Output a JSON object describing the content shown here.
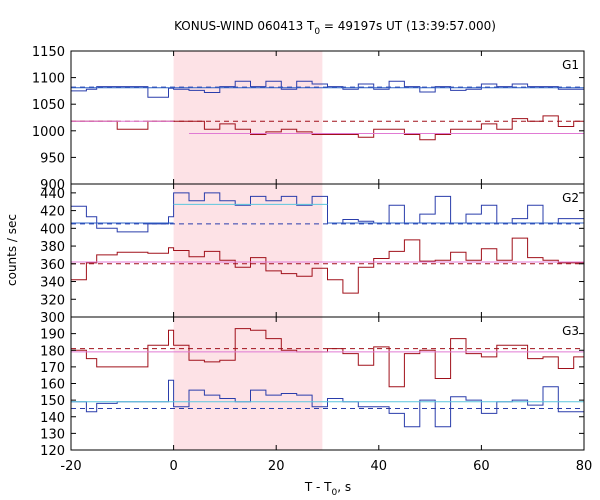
{
  "chart_data": {
    "type": "line",
    "title_main": "KONUS-WIND 060413 T",
    "title_sub": "0",
    "title_rest": " = 49197s UT (13:39:57.000)",
    "xlabel_main": "T - T",
    "xlabel_sub": "0",
    "xlabel_rest": ", s",
    "ylabel": "counts / sec",
    "xlim": [
      -20,
      80
    ],
    "x_ticks": [
      -20,
      0,
      20,
      40,
      60,
      80
    ],
    "x_tick_labels": [
      "-20",
      "0",
      "20",
      "40",
      "60",
      "80"
    ],
    "highlight_interval": [
      0,
      29
    ],
    "colors": {
      "blue": "#2a3dab",
      "red": "#a0101a",
      "fit_blue": "#2f63c8",
      "fit_light": "#5cc6dd",
      "fit_pink": "#e07ad4",
      "band": "#fde2e6"
    },
    "panels": [
      {
        "name": "G1",
        "label": "G1",
        "ylim": [
          900,
          1150
        ],
        "y_ticks": [
          900,
          950,
          1000,
          1050,
          1100,
          1150
        ],
        "y_tick_labels": [
          "900",
          "950",
          "1000",
          "1050",
          "1100",
          "1150"
        ],
        "series": [
          {
            "name": "blue",
            "color": "blue",
            "edges": [
              -20,
              -17,
              -15,
              -11,
              -5,
              -1,
              0,
              3,
              6,
              9,
              12,
              15,
              18,
              21,
              24,
              27,
              30,
              33,
              36,
              39,
              42,
              45,
              48,
              51,
              54,
              57,
              60,
              63,
              66,
              69,
              72,
              75,
              78,
              80
            ],
            "values": [
              1075,
              1078,
              1083,
              1083,
              1063,
              1080,
              1078,
              1076,
              1072,
              1083,
              1093,
              1083,
              1093,
              1078,
              1093,
              1088,
              1083,
              1078,
              1088,
              1078,
              1093,
              1083,
              1073,
              1083,
              1076,
              1078,
              1088,
              1083,
              1088,
              1083,
              1083,
              1078,
              1078
            ]
          },
          {
            "name": "red",
            "color": "red",
            "edges": [
              -20,
              -17,
              -15,
              -11,
              -5,
              -1,
              0,
              3,
              6,
              9,
              12,
              15,
              18,
              21,
              24,
              27,
              30,
              33,
              36,
              39,
              42,
              45,
              48,
              51,
              54,
              57,
              60,
              63,
              66,
              69,
              72,
              75,
              78,
              80
            ],
            "values": [
              1018,
              1018,
              1018,
              1003,
              1018,
              1018,
              1018,
              1018,
              1003,
              1013,
              1003,
              993,
              998,
              1003,
              998,
              993,
              993,
              993,
              988,
              1003,
              1003,
              993,
              983,
              993,
              1003,
              1003,
              1013,
              1003,
              1023,
              1018,
              1028,
              1008,
              1018
            ]
          }
        ],
        "fits": [
          {
            "name": "blue-dashed",
            "color": "blue",
            "dashed": true,
            "x": [
              -20,
              80
            ],
            "y": [
              1082,
              1082
            ]
          },
          {
            "name": "blue-fit",
            "color": "fit_blue",
            "dashed": false,
            "x": [
              -20,
              80
            ],
            "y": [
              1081,
              1081
            ]
          },
          {
            "name": "red-dashed",
            "color": "red",
            "dashed": true,
            "x": [
              -20,
              80
            ],
            "y": [
              1018,
              1018
            ]
          },
          {
            "name": "pink-fit-pre",
            "color": "fit_pink",
            "dashed": false,
            "x": [
              -20,
              0
            ],
            "y": [
              1018,
              1018
            ]
          },
          {
            "name": "pink-fit-post",
            "color": "fit_pink",
            "dashed": false,
            "x": [
              3,
              80
            ],
            "y": [
              995,
              995
            ]
          }
        ]
      },
      {
        "name": "G2",
        "label": "G2",
        "ylim": [
          300,
          450
        ],
        "y_ticks": [
          300,
          320,
          340,
          360,
          380,
          400,
          420,
          440
        ],
        "y_tick_labels": [
          "300",
          "320",
          "340",
          "360",
          "380",
          "400",
          "420",
          "440"
        ],
        "series": [
          {
            "name": "blue",
            "color": "blue",
            "edges": [
              -20,
              -17,
              -15,
              -11,
              -5,
              -1,
              0,
              3,
              6,
              9,
              12,
              15,
              18,
              21,
              24,
              27,
              30,
              33,
              36,
              39,
              42,
              45,
              48,
              51,
              54,
              57,
              60,
              63,
              66,
              69,
              72,
              75,
              78,
              80
            ],
            "values": [
              425,
              413,
              400,
              396,
              405,
              413,
              440,
              431,
              440,
              431,
              426,
              436,
              431,
              436,
              426,
              436,
              406,
              410,
              408,
              406,
              426,
              406,
              416,
              436,
              406,
              416,
              426,
              406,
              411,
              426,
              406,
              411,
              411
            ]
          },
          {
            "name": "red",
            "color": "red",
            "edges": [
              -20,
              -17,
              -15,
              -11,
              -5,
              -1,
              0,
              3,
              6,
              9,
              12,
              15,
              18,
              21,
              24,
              27,
              30,
              33,
              36,
              39,
              42,
              45,
              48,
              51,
              54,
              57,
              60,
              63,
              66,
              69,
              72,
              75,
              78,
              80
            ],
            "values": [
              342,
              361,
              370,
              373,
              372,
              378,
              375,
              368,
              374,
              364,
              356,
              367,
              352,
              349,
              346,
              355,
              342,
              327,
              356,
              366,
              374,
              387,
              363,
              364,
              373,
              364,
              377,
              364,
              389,
              367,
              364,
              361,
              361
            ]
          }
        ],
        "fits": [
          {
            "name": "blue-dashed",
            "color": "blue",
            "dashed": true,
            "x": [
              -20,
              80
            ],
            "y": [
              405,
              405
            ]
          },
          {
            "name": "blue-fit",
            "color": "fit_blue",
            "dashed": false,
            "x": [
              -20,
              0
            ],
            "y": [
              406,
              406
            ]
          },
          {
            "name": "light-fit",
            "color": "fit_light",
            "dashed": false,
            "x": [
              0,
              30
            ],
            "y": [
              427,
              427
            ]
          },
          {
            "name": "blue-fit-post",
            "color": "fit_blue",
            "dashed": false,
            "x": [
              30,
              80
            ],
            "y": [
              406,
              406
            ]
          },
          {
            "name": "red-dashed",
            "color": "red",
            "dashed": true,
            "x": [
              -20,
              80
            ],
            "y": [
              360,
              360
            ]
          },
          {
            "name": "pink-fit",
            "color": "fit_pink",
            "dashed": false,
            "x": [
              -20,
              80
            ],
            "y": [
              362,
              362
            ]
          }
        ]
      },
      {
        "name": "G3",
        "label": "G3",
        "ylim": [
          120,
          200
        ],
        "y_ticks": [
          120,
          130,
          140,
          150,
          160,
          170,
          180,
          190
        ],
        "y_tick_labels": [
          "120",
          "130",
          "140",
          "150",
          "160",
          "170",
          "180",
          "190"
        ],
        "series": [
          {
            "name": "blue",
            "color": "blue",
            "edges": [
              -20,
              -17,
              -15,
              -11,
              -5,
              -1,
              0,
              3,
              6,
              9,
              12,
              15,
              18,
              21,
              24,
              27,
              30,
              33,
              36,
              39,
              42,
              45,
              48,
              51,
              54,
              57,
              60,
              63,
              66,
              69,
              72,
              75,
              78,
              80
            ],
            "values": [
              149,
              143,
              148,
              149,
              149,
              162,
              146,
              156,
              153,
              151,
              149,
              156,
              153,
              154,
              153,
              146,
              151,
              149,
              146,
              146,
              142,
              134,
              150,
              134,
              152,
              150,
              142,
              149,
              150,
              147,
              158,
              143,
              143
            ]
          },
          {
            "name": "red",
            "color": "red",
            "edges": [
              -20,
              -17,
              -15,
              -11,
              -5,
              -1,
              0,
              3,
              6,
              9,
              12,
              15,
              18,
              21,
              24,
              27,
              30,
              33,
              36,
              39,
              42,
              45,
              48,
              51,
              54,
              57,
              60,
              63,
              66,
              69,
              72,
              75,
              78,
              80
            ],
            "values": [
              180,
              175,
              170,
              170,
              183,
              192,
              183,
              174,
              173,
              174,
              193,
              192,
              187,
              180,
              179,
              179,
              181,
              178,
              171,
              182,
              158,
              178,
              180,
              163,
              187,
              178,
              176,
              183,
              183,
              175,
              176,
              169,
              176
            ]
          }
        ],
        "fits": [
          {
            "name": "red-dashed",
            "color": "red",
            "dashed": true,
            "x": [
              -20,
              80
            ],
            "y": [
              181,
              181
            ]
          },
          {
            "name": "pink-fit",
            "color": "fit_pink",
            "dashed": false,
            "x": [
              -20,
              80
            ],
            "y": [
              179,
              179
            ]
          },
          {
            "name": "blue-dashed",
            "color": "blue",
            "dashed": true,
            "x": [
              -20,
              80
            ],
            "y": [
              145,
              145
            ]
          },
          {
            "name": "light-fit",
            "color": "fit_light",
            "dashed": false,
            "x": [
              -20,
              80
            ],
            "y": [
              149,
              149
            ]
          }
        ]
      }
    ]
  }
}
